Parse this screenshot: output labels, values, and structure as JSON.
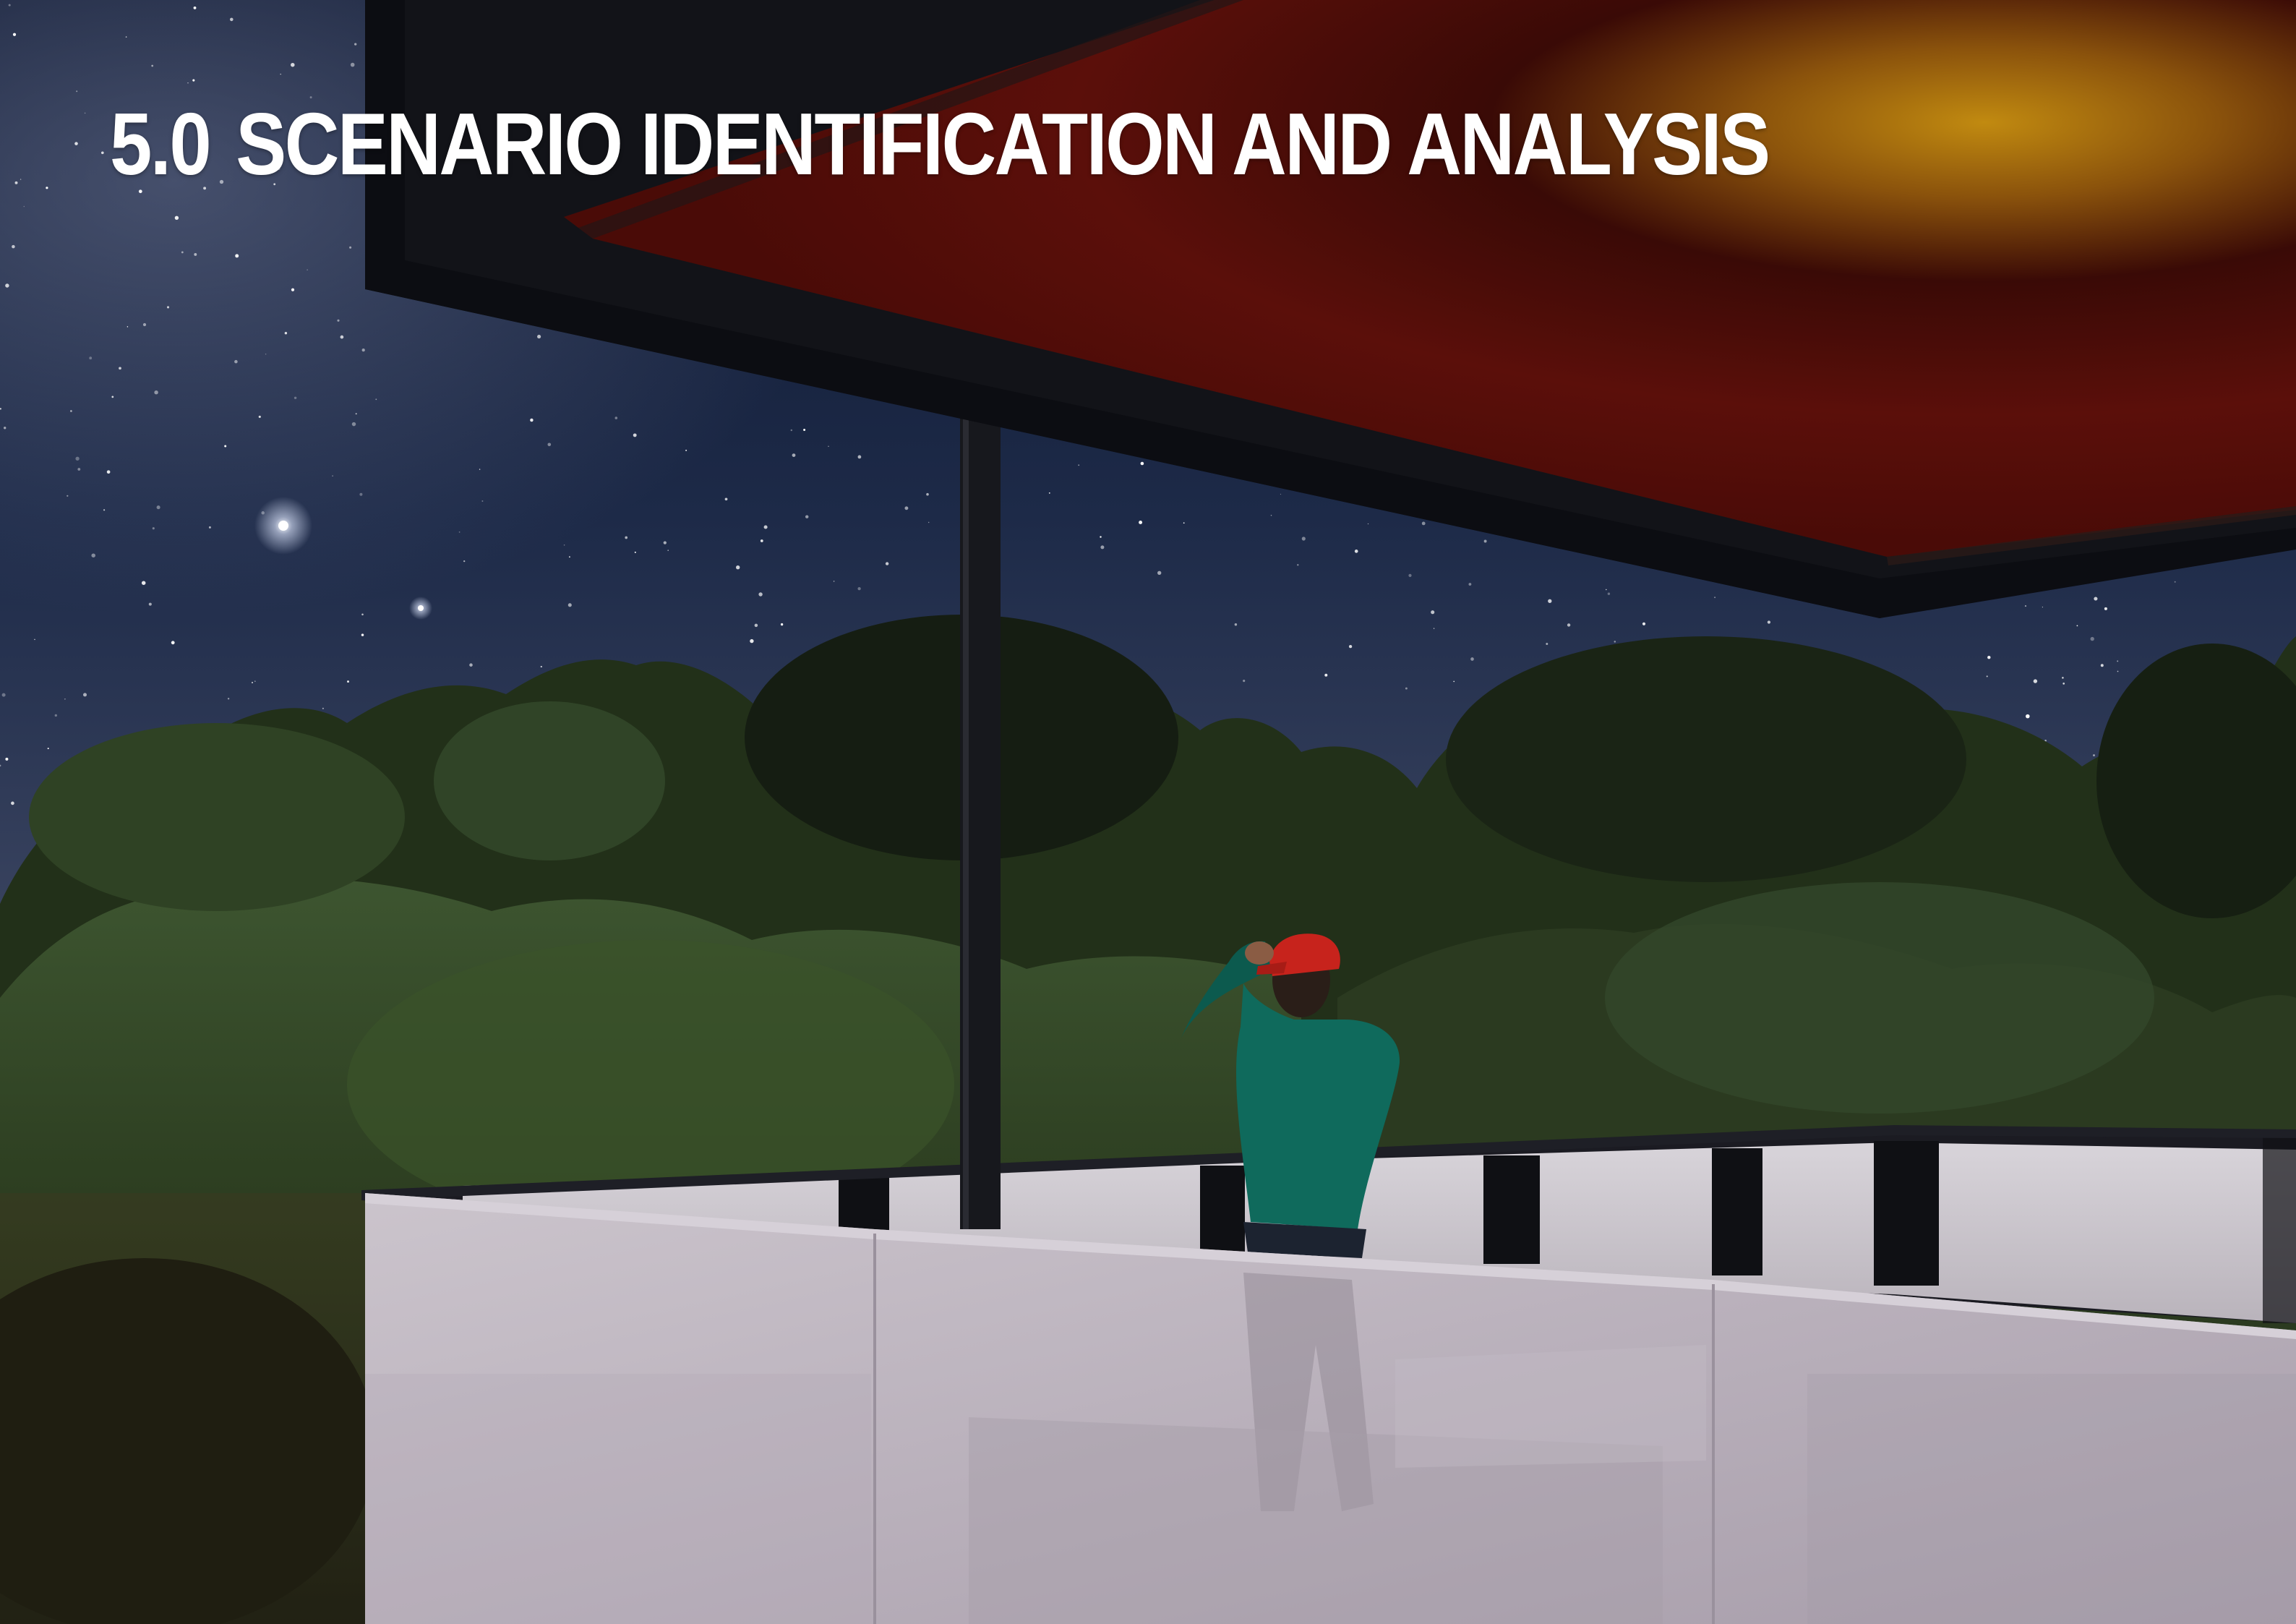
{
  "heading": {
    "number": "5.0",
    "title": "SCENARIO IDENTIFICATION AND ANALYSIS"
  },
  "illustration": {
    "subject": "night-rooftop-terrace-render",
    "colors": {
      "sky_top": "#0e1830",
      "sky_horizon": "#38425c",
      "canopy_frame": "#14151b",
      "canopy_fabric_red": "#5a0d08",
      "canopy_fabric_amber": "#b77d0d",
      "foliage_dark": "#1b2514",
      "foliage_mid": "#3f5a2a",
      "glass_balustrade": "#bdb5bf",
      "person_sweater": "#0f6a5c",
      "person_cap": "#c7231c"
    }
  }
}
